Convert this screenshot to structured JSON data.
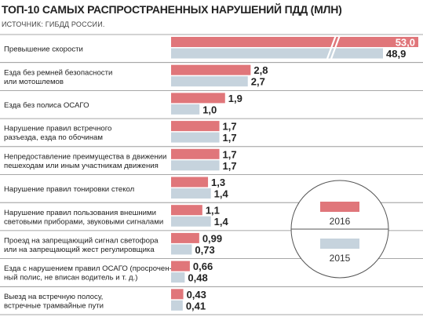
{
  "header": {
    "title": "ТОП-10 САМЫХ РАСПРОСТРАНЕННЫХ НАРУШЕНИЙ ПДД (МЛН)",
    "source": "ИСТОЧНИК: ГИБДД РОССИИ."
  },
  "chart_data": {
    "type": "bar",
    "orientation": "horizontal",
    "title": "ТОП-10 САМЫХ РАСПРОСТРАНЕННЫХ НАРУШЕНИЙ ПДД (МЛН)",
    "categories": [
      [
        "Превышение скорости"
      ],
      [
        "Езда без ремней безопасности",
        "или мотошлемов"
      ],
      [
        "Езда без полиса ОСАГО"
      ],
      [
        "Нарушение правил встречного",
        "разъезда, езда по обочинам"
      ],
      [
        "Непредоставление преимущества в движении",
        "пешеходам или иным участникам движения"
      ],
      [
        "Нарушение правил тонировки стекол"
      ],
      [
        "Нарушение правил пользования внешними",
        "световыми приборами, звуковыми сигналами"
      ],
      [
        "Проезд на запрещающий сигнал светофора",
        "или на запрещающий жест регулировщика"
      ],
      [
        "Езда с нарушением правил ОСАГО (просрочен-",
        "ный полис, не вписан водитель и т. д.)"
      ],
      [
        "Выезд на встречную полосу,",
        "встречные трамвайные пути"
      ]
    ],
    "series": [
      {
        "name": "2016",
        "color": "#e0767a",
        "values": [
          53.0,
          2.8,
          1.9,
          1.7,
          1.7,
          1.3,
          1.1,
          0.99,
          0.66,
          0.43
        ],
        "labels": [
          "53,0",
          "2,8",
          "1,9",
          "1,7",
          "1,7",
          "1,3",
          "1,1",
          "0,99",
          "0,66",
          "0,43"
        ]
      },
      {
        "name": "2015",
        "color": "#c6d3dd",
        "values": [
          48.9,
          2.7,
          1.0,
          1.7,
          1.7,
          1.4,
          1.4,
          0.73,
          0.48,
          0.41
        ],
        "labels": [
          "48,9",
          "2,7",
          "1,0",
          "1,7",
          "1,7",
          "1,4",
          "1,4",
          "0,73",
          "0,48",
          "0,41"
        ]
      }
    ],
    "axis_break": true,
    "grid": false,
    "legend": {
      "placement": "right",
      "shape": "circle"
    }
  }
}
